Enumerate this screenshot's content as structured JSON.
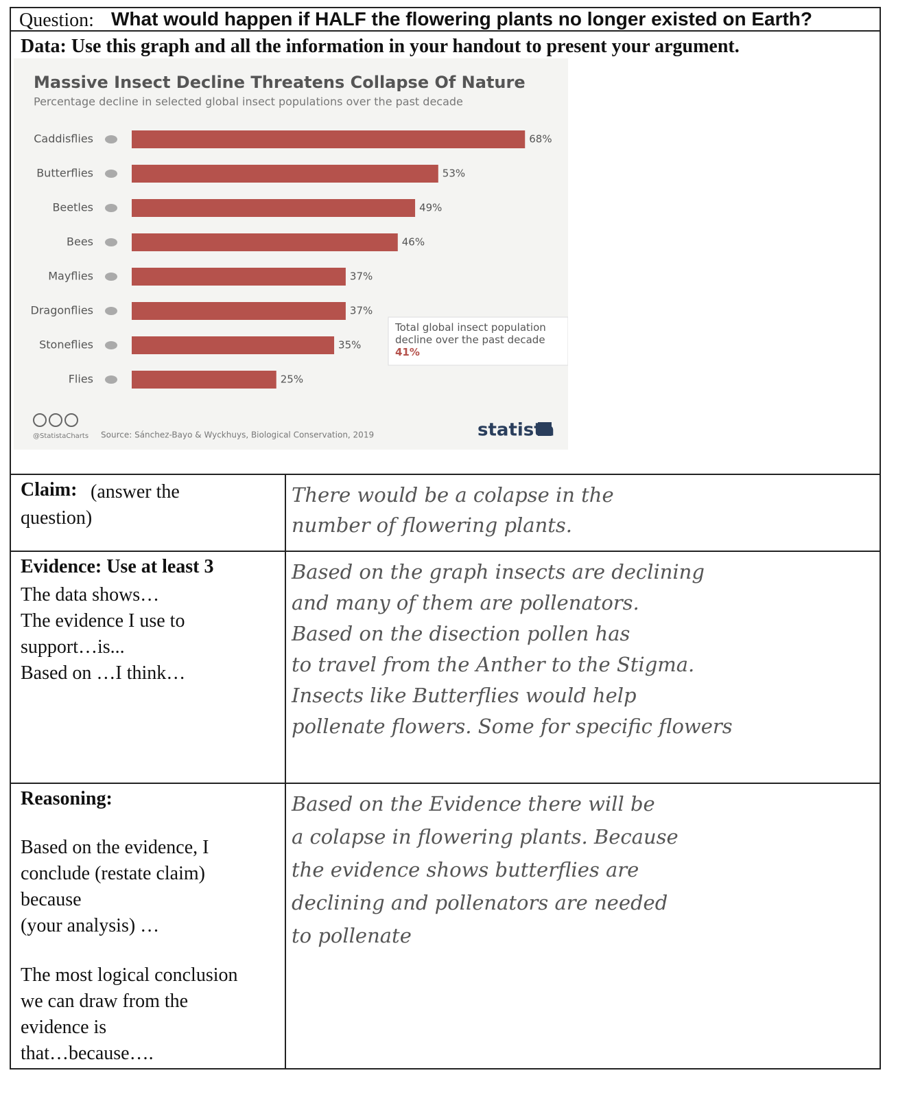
{
  "question": {
    "label": "Question:",
    "text": "What would happen if HALF the flowering plants no longer existed on Earth?"
  },
  "data_prompt": "Data: Use this graph and all the information in your handout to present your argument.",
  "chart_data": {
    "type": "bar",
    "orientation": "horizontal",
    "title": "Massive Insect Decline Threatens Collapse Of Nature",
    "subtitle": "Percentage decline in selected global insect populations over the past decade",
    "categories": [
      "Caddisflies",
      "Butterflies",
      "Beetles",
      "Bees",
      "Mayflies",
      "Dragonflies",
      "Stoneflies",
      "Flies"
    ],
    "values": [
      68,
      53,
      49,
      46,
      37,
      37,
      35,
      25
    ],
    "value_labels": [
      "68%",
      "53%",
      "49%",
      "46%",
      "37%",
      "37%",
      "35%",
      "25%"
    ],
    "color": "#b5524c",
    "annotation": {
      "text": "Total global insect population decline over the past decade",
      "value_label": "41%"
    },
    "credit": "@StatistaCharts",
    "source": "Source: Sánchez-Bayo & Wyckhuys, Biological Conservation, 2019",
    "brand": "statista"
  },
  "rows": [
    {
      "heading": "Claim:",
      "prompt": [
        "(answer the",
        "question)"
      ],
      "answer": [
        "There would be a colapse in the",
        "number of flowering plants."
      ]
    },
    {
      "heading": "Evidence: Use at least 3",
      "prompt": [
        "The data shows…",
        "The evidence I use to",
        "support…is...",
        "Based on …I think…"
      ],
      "answer": [
        "Based on the graph insects are declining",
        "and many of them are pollenators.",
        "Based on the disection pollen has",
        "to travel from the Anther to the Stigma.",
        "Insects like Butterflies would help",
        "pollenate flowers. Some for specific flowers"
      ]
    },
    {
      "heading": "Reasoning:",
      "prompt": [
        "Based on the evidence, I",
        "conclude (restate claim)",
        "because",
        "(your analysis) …"
      ],
      "prompt_2": [
        "The most logical conclusion",
        "we can draw from the",
        "evidence is",
        "that…because…."
      ],
      "answer": [
        "Based on the Evidence there will be",
        "a colapse in flowering plants. Because",
        "the evidence shows butterflies are",
        "declining and pollenators are needed",
        "to pollenate"
      ]
    }
  ]
}
